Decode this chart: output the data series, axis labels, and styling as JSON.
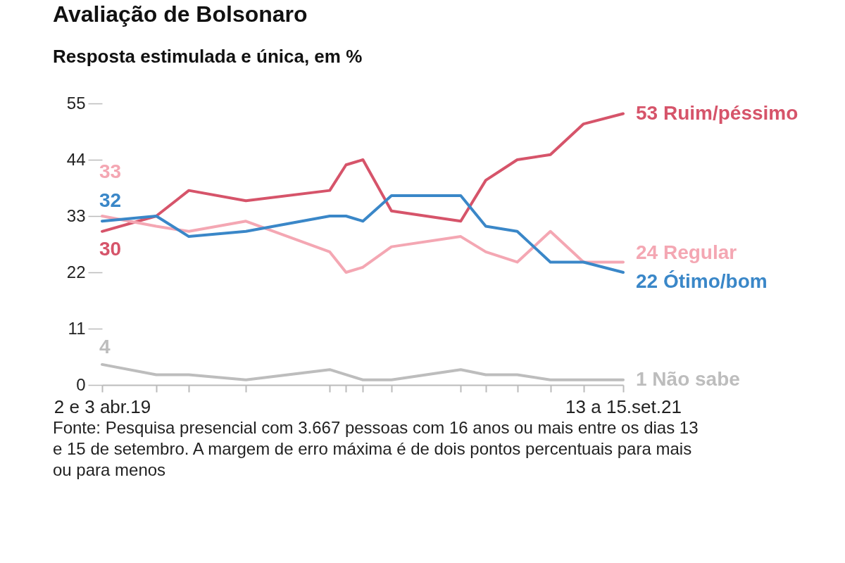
{
  "chart_data": {
    "type": "line",
    "title": "Avaliação de Bolsonaro",
    "subtitle": "Resposta estimulada e única, em %",
    "x": [
      "2019-04-02",
      "2019-07-04",
      "2019-08-29",
      "2019-12-05",
      "2020-04-27",
      "2020-05-25",
      "2020-06-23",
      "2020-08-11",
      "2020-12-08",
      "2021-01-20",
      "2021-03-15",
      "2021-05-11",
      "2021-07-07",
      "2021-09-13"
    ],
    "xlim": [
      "2019-04-02",
      "2021-09-13"
    ],
    "xticks": [
      {
        "value": "2019-04-02",
        "label": "2 e 3 abr.19"
      },
      {
        "value": "2019-07-04",
        "label": null
      },
      {
        "value": "2019-08-29",
        "label": null
      },
      {
        "value": "2019-12-05",
        "label": null
      },
      {
        "value": "2020-04-27",
        "label": null
      },
      {
        "value": "2020-05-25",
        "label": null
      },
      {
        "value": "2020-06-23",
        "label": null
      },
      {
        "value": "2020-08-11",
        "label": null
      },
      {
        "value": "2020-12-08",
        "label": null
      },
      {
        "value": "2021-01-20",
        "label": null
      },
      {
        "value": "2021-03-15",
        "label": null
      },
      {
        "value": "2021-05-11",
        "label": null
      },
      {
        "value": "2021-07-07",
        "label": null
      },
      {
        "value": "2021-09-13",
        "label": "13 a 15.set.21"
      }
    ],
    "ylim": [
      0,
      55
    ],
    "yticks": [
      0,
      11,
      22,
      33,
      44,
      55
    ],
    "grid": false,
    "legend": false,
    "marker": "none",
    "line_style": "solid",
    "series": [
      {
        "name": "Ruim/péssimo",
        "color": "#d6546a",
        "values": [
          30,
          33,
          38,
          36,
          38,
          43,
          44,
          34,
          32,
          40,
          44,
          45,
          51,
          53
        ],
        "value_labels": [
          "30",
          null,
          null,
          null,
          null,
          null,
          null,
          null,
          null,
          null,
          null,
          null,
          null,
          "53"
        ]
      },
      {
        "name": "Regular",
        "color": "#f4a7b3",
        "values": [
          33,
          31,
          30,
          32,
          26,
          22,
          23,
          27,
          29,
          26,
          24,
          30,
          24,
          24
        ],
        "value_labels": [
          "33",
          null,
          null,
          null,
          null,
          null,
          null,
          null,
          null,
          null,
          null,
          null,
          null,
          "24"
        ]
      },
      {
        "name": "Ótimo/bom",
        "color": "#3a87c8",
        "values": [
          32,
          33,
          29,
          30,
          33,
          33,
          32,
          37,
          37,
          31,
          30,
          24,
          24,
          22
        ],
        "value_labels": [
          "32",
          null,
          null,
          null,
          null,
          null,
          null,
          null,
          null,
          null,
          null,
          null,
          null,
          "22"
        ]
      },
      {
        "name": "Não sabe",
        "color": "#bdbdbd",
        "values": [
          4,
          2,
          2,
          1,
          3,
          2,
          1,
          1,
          3,
          2,
          2,
          1,
          1,
          1
        ],
        "value_labels": [
          "4",
          null,
          null,
          null,
          null,
          null,
          null,
          null,
          null,
          null,
          null,
          null,
          null,
          "1"
        ]
      }
    ],
    "annotations": [
      "Fonte: Pesquisa presencial com 3.667 pessoas com 16 anos ou mais entre os dias 13 e 15 de setembro. A margem de erro máxima é de dois pontos percentuais para mais ou para menos"
    ]
  }
}
